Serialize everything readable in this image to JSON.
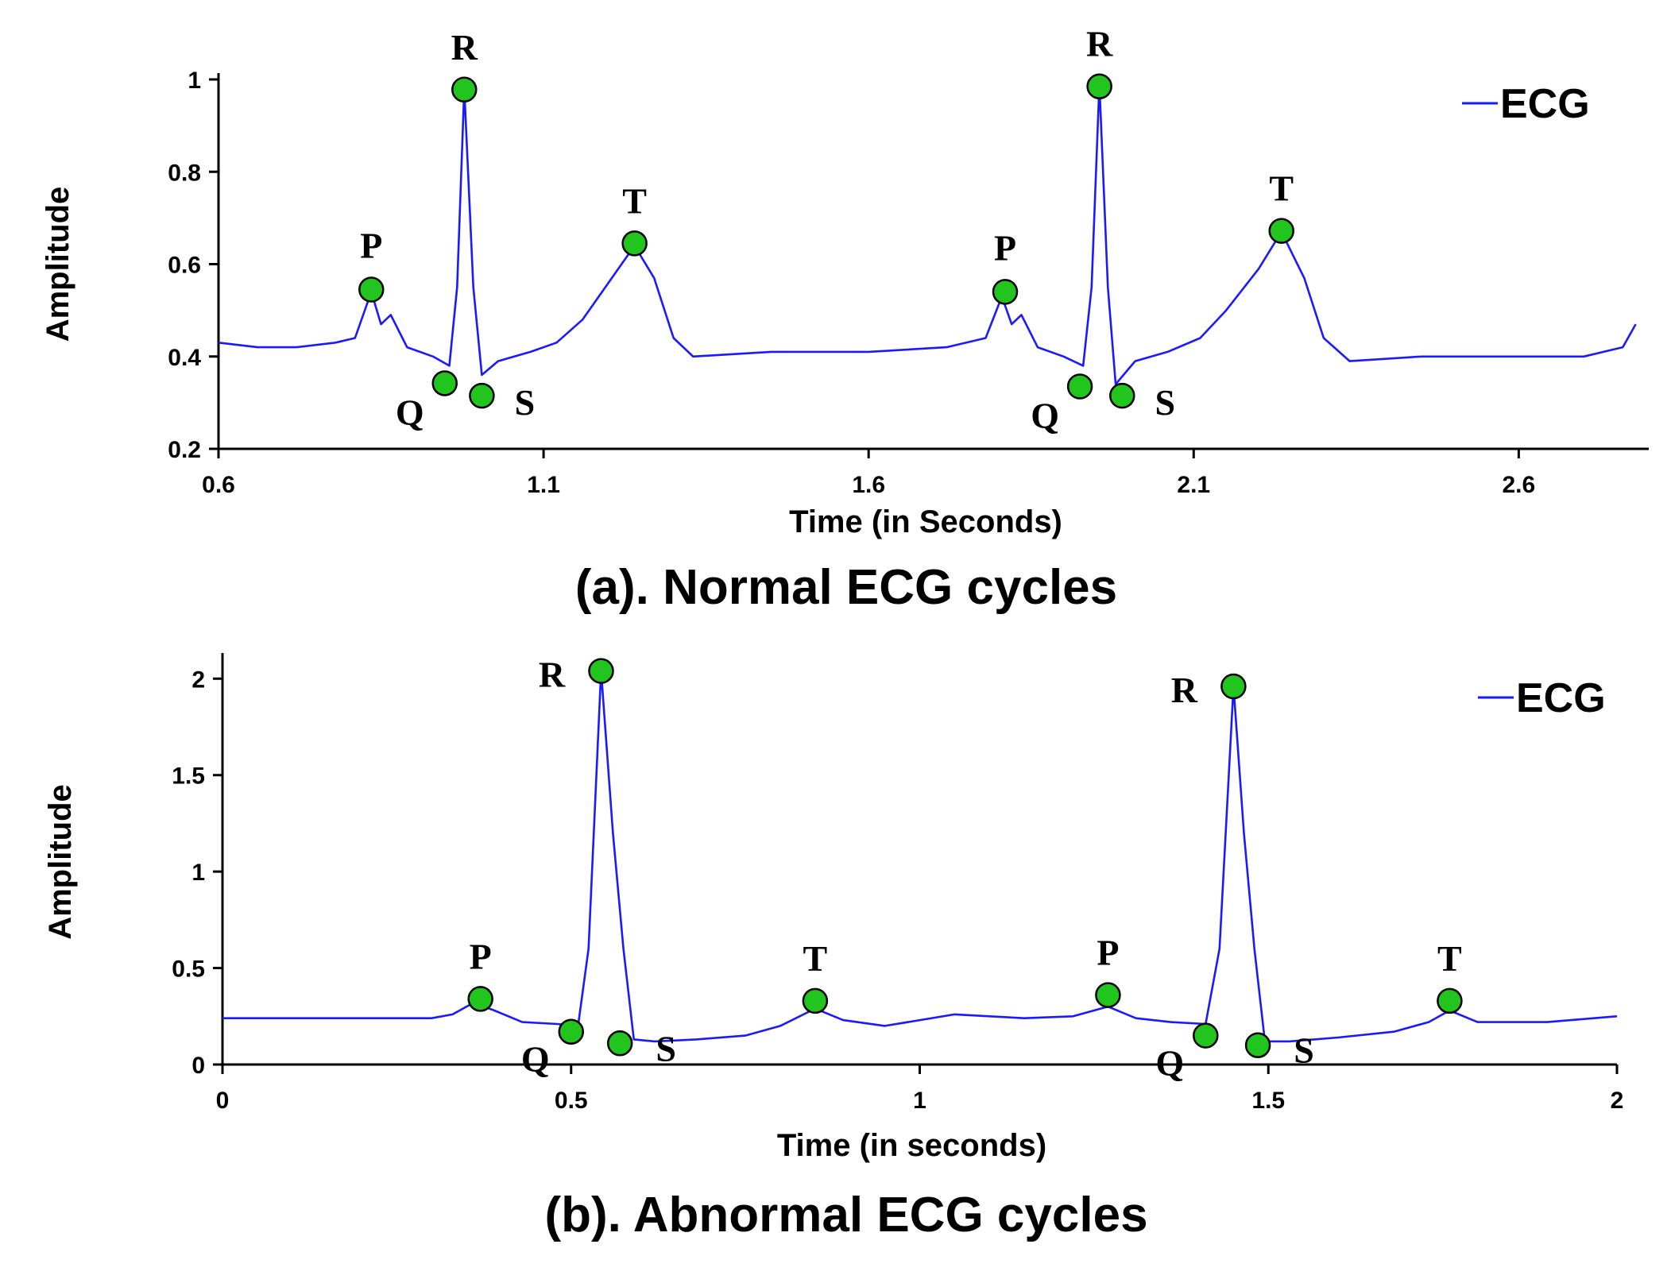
{
  "colors": {
    "trace": "#1a1aff",
    "marker_fill": "#22c41e",
    "marker_stroke": "#000000",
    "axis": "#000000"
  },
  "chart_data": [
    {
      "type": "line",
      "caption": "(a). Normal ECG cycles",
      "xlabel": "Time (in Seconds)",
      "ylabel": "Amplitude",
      "xlim": [
        0.6,
        2.8
      ],
      "ylim": [
        0.2,
        1.0
      ],
      "x_ticks": [
        "0.6",
        "1.1",
        "1.6",
        "2.1",
        "2.6"
      ],
      "y_ticks": [
        "0.2",
        "0.4",
        "0.6",
        "0.8",
        "1"
      ],
      "legend": {
        "label": "ECG",
        "position": "top-right"
      },
      "series": [
        {
          "name": "ECG",
          "points": [
            [
              0.6,
              0.43
            ],
            [
              0.66,
              0.42
            ],
            [
              0.72,
              0.42
            ],
            [
              0.78,
              0.43
            ],
            [
              0.81,
              0.44
            ],
            [
              0.835,
              0.54
            ],
            [
              0.85,
              0.47
            ],
            [
              0.865,
              0.49
            ],
            [
              0.89,
              0.42
            ],
            [
              0.93,
              0.4
            ],
            [
              0.955,
              0.38
            ],
            [
              0.967,
              0.55
            ],
            [
              0.978,
              0.98
            ],
            [
              0.992,
              0.55
            ],
            [
              1.005,
              0.36
            ],
            [
              1.03,
              0.39
            ],
            [
              1.08,
              0.41
            ],
            [
              1.12,
              0.43
            ],
            [
              1.16,
              0.48
            ],
            [
              1.2,
              0.56
            ],
            [
              1.24,
              0.64
            ],
            [
              1.27,
              0.57
            ],
            [
              1.3,
              0.44
            ],
            [
              1.33,
              0.4
            ],
            [
              1.45,
              0.41
            ],
            [
              1.6,
              0.41
            ],
            [
              1.72,
              0.42
            ],
            [
              1.78,
              0.44
            ],
            [
              1.805,
              0.53
            ],
            [
              1.82,
              0.47
            ],
            [
              1.835,
              0.49
            ],
            [
              1.86,
              0.42
            ],
            [
              1.9,
              0.4
            ],
            [
              1.93,
              0.38
            ],
            [
              1.943,
              0.55
            ],
            [
              1.955,
              0.99
            ],
            [
              1.968,
              0.55
            ],
            [
              1.98,
              0.34
            ],
            [
              2.01,
              0.39
            ],
            [
              2.06,
              0.41
            ],
            [
              2.11,
              0.44
            ],
            [
              2.15,
              0.5
            ],
            [
              2.2,
              0.59
            ],
            [
              2.235,
              0.67
            ],
            [
              2.27,
              0.57
            ],
            [
              2.3,
              0.44
            ],
            [
              2.34,
              0.39
            ],
            [
              2.45,
              0.4
            ],
            [
              2.6,
              0.4
            ],
            [
              2.7,
              0.4
            ],
            [
              2.76,
              0.42
            ],
            [
              2.78,
              0.47
            ]
          ]
        }
      ],
      "annotations": [
        {
          "label": "P",
          "x": 0.835,
          "y": 0.545
        },
        {
          "label": "Q",
          "x": 0.948,
          "y": 0.342
        },
        {
          "label": "R",
          "x": 0.978,
          "y": 0.978
        },
        {
          "label": "S",
          "x": 1.005,
          "y": 0.315
        },
        {
          "label": "T",
          "x": 1.24,
          "y": 0.645
        },
        {
          "label": "P",
          "x": 1.81,
          "y": 0.54
        },
        {
          "label": "Q",
          "x": 1.925,
          "y": 0.335
        },
        {
          "label": "R",
          "x": 1.955,
          "y": 0.985
        },
        {
          "label": "S",
          "x": 1.99,
          "y": 0.315
        },
        {
          "label": "T",
          "x": 2.235,
          "y": 0.672
        }
      ]
    },
    {
      "type": "line",
      "caption": "(b). Abnormal ECG cycles",
      "xlabel": "Time (in seconds)",
      "ylabel": "Amplitude",
      "xlim": [
        0,
        2.0
      ],
      "ylim": [
        0,
        2.1
      ],
      "x_ticks": [
        "0",
        "0.5",
        "1",
        "1.5",
        "2"
      ],
      "y_ticks": [
        "0",
        "0.5",
        "1",
        "1.5",
        "2"
      ],
      "legend": {
        "label": "ECG",
        "position": "top-right"
      },
      "series": [
        {
          "name": "ECG",
          "points": [
            [
              0,
              0.24
            ],
            [
              0.2,
              0.24
            ],
            [
              0.3,
              0.24
            ],
            [
              0.33,
              0.26
            ],
            [
              0.36,
              0.32
            ],
            [
              0.39,
              0.28
            ],
            [
              0.43,
              0.22
            ],
            [
              0.48,
              0.21
            ],
            [
              0.51,
              0.2
            ],
            [
              0.525,
              0.6
            ],
            [
              0.543,
              2.04
            ],
            [
              0.56,
              1.2
            ],
            [
              0.575,
              0.6
            ],
            [
              0.59,
              0.13
            ],
            [
              0.62,
              0.12
            ],
            [
              0.68,
              0.13
            ],
            [
              0.75,
              0.15
            ],
            [
              0.8,
              0.2
            ],
            [
              0.85,
              0.29
            ],
            [
              0.89,
              0.23
            ],
            [
              0.95,
              0.2
            ],
            [
              1.05,
              0.26
            ],
            [
              1.15,
              0.24
            ],
            [
              1.22,
              0.25
            ],
            [
              1.27,
              0.3
            ],
            [
              1.31,
              0.24
            ],
            [
              1.36,
              0.22
            ],
            [
              1.41,
              0.21
            ],
            [
              1.43,
              0.6
            ],
            [
              1.45,
              1.96
            ],
            [
              1.465,
              1.2
            ],
            [
              1.48,
              0.6
            ],
            [
              1.495,
              0.12
            ],
            [
              1.53,
              0.12
            ],
            [
              1.6,
              0.14
            ],
            [
              1.68,
              0.17
            ],
            [
              1.73,
              0.22
            ],
            [
              1.76,
              0.28
            ],
            [
              1.8,
              0.22
            ],
            [
              1.9,
              0.22
            ],
            [
              2.0,
              0.25
            ]
          ]
        }
      ],
      "annotations": [
        {
          "label": "P",
          "x": 0.37,
          "y": 0.34
        },
        {
          "label": "Q",
          "x": 0.5,
          "y": 0.17
        },
        {
          "label": "R",
          "x": 0.543,
          "y": 2.04
        },
        {
          "label": "S",
          "x": 0.57,
          "y": 0.11
        },
        {
          "label": "T",
          "x": 0.85,
          "y": 0.33
        },
        {
          "label": "P",
          "x": 1.27,
          "y": 0.36
        },
        {
          "label": "Q",
          "x": 1.41,
          "y": 0.15
        },
        {
          "label": "R",
          "x": 1.45,
          "y": 1.96
        },
        {
          "label": "S",
          "x": 1.485,
          "y": 0.1
        },
        {
          "label": "T",
          "x": 1.76,
          "y": 0.33
        }
      ]
    }
  ]
}
